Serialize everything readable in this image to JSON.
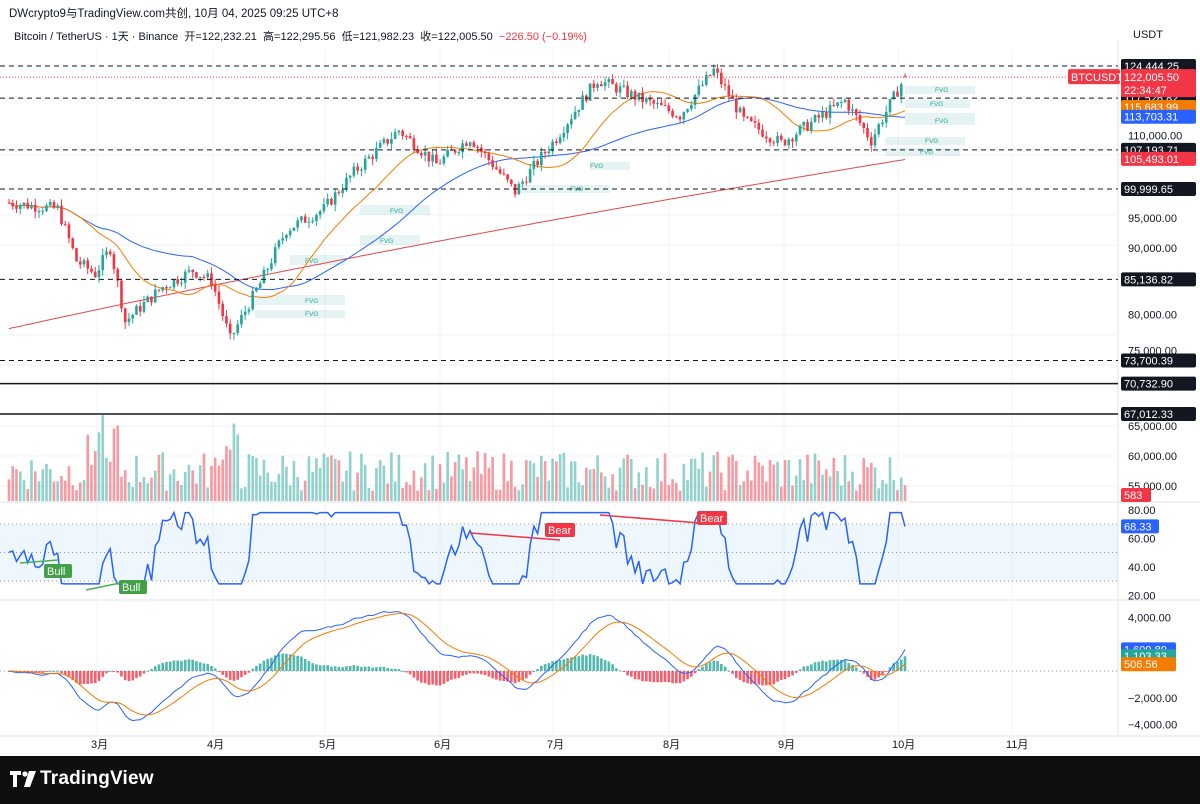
{
  "header": {
    "caption": "DWcrypto9与TradingView.com共创, 10月 04, 2025 09:25 UTC+8",
    "symbol": "Bitcoin / TetherUS · 1天 · Binance",
    "open_label": "开=",
    "open_value": "122,232.21",
    "high_label": "高=",
    "high_value": "122,295.56",
    "low_label": "低=",
    "low_value": "121,982.23",
    "close_label": "收=",
    "close_value": "122,005.50",
    "change": "−226.50 (−0.19%)",
    "currency": "USDT"
  },
  "price_axis": {
    "ticks": [
      "110,000.00",
      "95,000.00",
      "90,000.00",
      "80,000.00",
      "75,000.00",
      "65,000.00",
      "60,000.00",
      "55,000.00"
    ],
    "levels": [
      {
        "label": "124,444.25",
        "style": "dash"
      },
      {
        "label": "117,526.82",
        "style": "dash"
      },
      {
        "label": "107,193.71",
        "style": "dash"
      },
      {
        "label": "99,999.65",
        "style": "dash"
      },
      {
        "label": "85,136.82",
        "style": "dash"
      },
      {
        "label": "73,700.39",
        "style": "dash"
      },
      {
        "label": "70,732.90",
        "style": "solid"
      },
      {
        "label": "67,012.33",
        "style": "solid"
      }
    ],
    "symbol_tag": "BTCUSDT",
    "last_price": "122,005.50",
    "countdown": "22:34:47",
    "ma_tags": [
      {
        "value": "115,683.99",
        "color": "#f57c00"
      },
      {
        "value": "113,703.31",
        "color": "#2962ff"
      },
      {
        "value": "105,493.01",
        "color": "#f23645"
      }
    ],
    "volume_tag": "583"
  },
  "rsi": {
    "ticks": [
      "80.00",
      "60.00",
      "40.00",
      "20.00"
    ],
    "value": "68.33",
    "labels": [
      "Bull",
      "Bull",
      "Bear",
      "Bear"
    ]
  },
  "macd": {
    "ticks": [
      "4,000.00",
      "−2,000.00",
      "−4,000.00"
    ],
    "values": [
      {
        "value": "1,609.89",
        "color": "#2962ff"
      },
      {
        "value": "1,103.33",
        "color": "#26a69a"
      },
      {
        "value": "506.56",
        "color": "#f57c00"
      }
    ]
  },
  "time_axis": [
    "3月",
    "4月",
    "5月",
    "6月",
    "7月",
    "8月",
    "9月",
    "10月",
    "11月"
  ],
  "fvg_label": "FVG",
  "brand": "TradingView",
  "colors": {
    "up": "#26a69a",
    "down": "#f23645",
    "ma_fast": "#f57c00",
    "ma_mid": "#2962ff",
    "ma_slow": "#e04a4a"
  },
  "chart_data": {
    "type": "candlestick",
    "title": "Bitcoin / TetherUS · 1天 · Binance",
    "ylabel": "USDT",
    "x_ticks": [
      "3月",
      "4月",
      "5月",
      "6月",
      "7月",
      "8月",
      "9月",
      "10月",
      "11月"
    ],
    "ylim": [
      65000,
      127000
    ],
    "price_path": [
      {
        "x": "02-08",
        "y": 97500
      },
      {
        "x": "02-20",
        "y": 96500
      },
      {
        "x": "02-25",
        "y": 88000
      },
      {
        "x": "03-02",
        "y": 86000
      },
      {
        "x": "03-06",
        "y": 90000
      },
      {
        "x": "03-10",
        "y": 79000
      },
      {
        "x": "03-20",
        "y": 84000
      },
      {
        "x": "03-28",
        "y": 86500
      },
      {
        "x": "04-02",
        "y": 85000
      },
      {
        "x": "04-07",
        "y": 76500
      },
      {
        "x": "04-15",
        "y": 84500
      },
      {
        "x": "04-22",
        "y": 93000
      },
      {
        "x": "05-02",
        "y": 96500
      },
      {
        "x": "05-10",
        "y": 103000
      },
      {
        "x": "05-22",
        "y": 111000
      },
      {
        "x": "06-01",
        "y": 104500
      },
      {
        "x": "06-10",
        "y": 109500
      },
      {
        "x": "06-22",
        "y": 99500
      },
      {
        "x": "07-03",
        "y": 109500
      },
      {
        "x": "07-14",
        "y": 121500
      },
      {
        "x": "07-25",
        "y": 117500
      },
      {
        "x": "08-05",
        "y": 114000
      },
      {
        "x": "08-14",
        "y": 123500
      },
      {
        "x": "08-22",
        "y": 113000
      },
      {
        "x": "09-01",
        "y": 108500
      },
      {
        "x": "09-10",
        "y": 113000
      },
      {
        "x": "09-18",
        "y": 117000
      },
      {
        "x": "09-25",
        "y": 109000
      },
      {
        "x": "10-04",
        "y": 122005
      }
    ],
    "horizontal_levels": [
      124444.25,
      117526.82,
      107193.71,
      99999.65,
      85136.82,
      73700.39,
      70732.9,
      67012.33
    ],
    "last": {
      "open": 122232.21,
      "high": 122295.56,
      "low": 121982.23,
      "close": 122005.5,
      "change": -226.5,
      "change_pct": -0.19
    },
    "moving_averages": [
      {
        "value": 115683.99,
        "color": "#f57c00"
      },
      {
        "value": 113703.31,
        "color": "#2962ff"
      },
      {
        "value": 105493.01,
        "color": "#f23645"
      }
    ],
    "volume_last": 583,
    "rsi": {
      "last": 68.33,
      "ylim": [
        20,
        80
      ],
      "band": [
        30,
        70
      ]
    },
    "macd": {
      "macd": 1609.89,
      "histogram": 1103.33,
      "signal": 506.56,
      "ylim": [
        -4000,
        4000
      ]
    }
  }
}
